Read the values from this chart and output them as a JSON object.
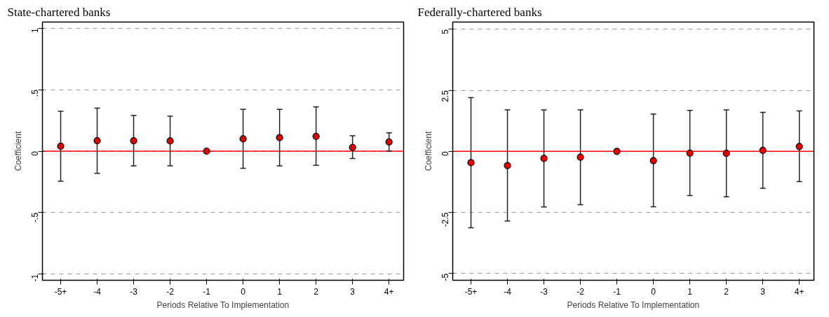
{
  "chart_data": [
    {
      "type": "scatter",
      "title": "State-chartered banks",
      "xlabel": "Periods Relative To Implementation",
      "ylabel": "Coefficient",
      "categories": [
        "-5+",
        "-4",
        "-3",
        "-2",
        "-1",
        "0",
        "1",
        "2",
        "3",
        "4+"
      ],
      "series": [
        {
          "color": "#e00000",
          "values": [
            0.04,
            0.085,
            0.085,
            0.083,
            0,
            0.1,
            0.11,
            0.12,
            0.03,
            0.075
          ],
          "errors": [
            [
              -0.245,
              0.325
            ],
            [
              -0.18,
              0.35
            ],
            [
              -0.12,
              0.29
            ],
            [
              -0.12,
              0.285
            ],
            null,
            [
              -0.14,
              0.34
            ],
            [
              -0.12,
              0.34
            ],
            [
              -0.115,
              0.36
            ],
            [
              -0.06,
              0.125
            ],
            [
              0,
              0.15
            ]
          ]
        }
      ],
      "ylim": [
        -1.05,
        1.05
      ],
      "yticks": [
        -1,
        {
          "value": -0.5,
          "label": "-.5"
        },
        0,
        {
          "value": 0.5,
          "label": ".5"
        },
        1
      ],
      "ref_lines": [
        {
          "axis": "y",
          "value": 0,
          "color": "#ff0000",
          "line_style": "solid"
        }
      ],
      "grid": "y",
      "marker": "circle"
    },
    {
      "type": "scatter",
      "title": "Federally-chartered banks",
      "xlabel": "Periods Relative To Implementation",
      "ylabel": "Coefficient",
      "categories": [
        "-5+",
        "-4",
        "-3",
        "-2",
        "-1",
        "0",
        "1",
        "2",
        "3",
        "4+"
      ],
      "series": [
        {
          "color": "#e00000",
          "values": [
            -0.46,
            -0.58,
            -0.29,
            -0.24,
            0,
            -0.38,
            -0.07,
            -0.08,
            0.04,
            0.2
          ],
          "errors": [
            [
              -3.13,
              2.2
            ],
            [
              -2.85,
              1.7
            ],
            [
              -2.28,
              1.7
            ],
            [
              -2.18,
              1.7
            ],
            null,
            [
              -2.27,
              1.53
            ],
            [
              -1.81,
              1.68
            ],
            [
              -1.86,
              1.7
            ],
            [
              -1.51,
              1.6
            ],
            [
              -1.24,
              1.66
            ]
          ]
        }
      ],
      "ylim": [
        -5.28,
        5.3
      ],
      "yticks": [
        -5,
        -2.5,
        0,
        2.5,
        5
      ],
      "ref_lines": [
        {
          "axis": "y",
          "value": 0,
          "color": "#ff0000",
          "line_style": "solid"
        }
      ],
      "grid": "y",
      "marker": "circle"
    }
  ]
}
